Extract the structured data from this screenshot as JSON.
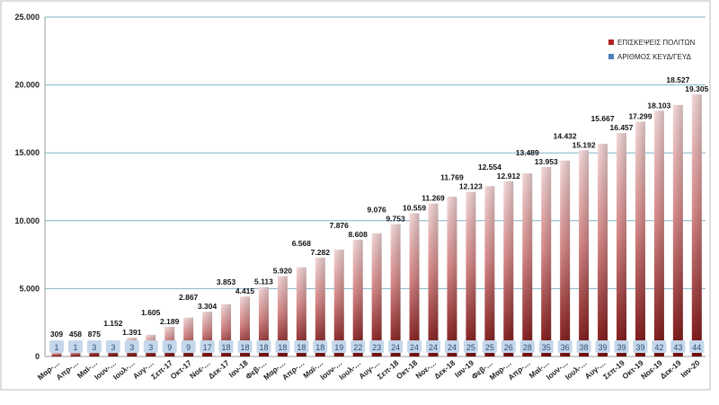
{
  "chart_data": {
    "type": "bar",
    "title": "",
    "xlabel": "",
    "ylabel": "",
    "ylim": [
      0,
      25000
    ],
    "yticks": [
      "0",
      "5.000",
      "10.000",
      "15.000",
      "20.000",
      "25.000"
    ],
    "grid": true,
    "legend_position": "top-right",
    "categories": [
      "Μαρ-…",
      "Απρ-…",
      "Μαϊ-…",
      "Ιουν-…",
      "Ιουλ-…",
      "Αυγ-…",
      "Σεπ-17",
      "Οκτ-17",
      "Νοε-…",
      "Δεκ-17",
      "Ιαν-18",
      "Φεβ-…",
      "Μαρ-…",
      "Απρ-…",
      "Μαϊ-…",
      "Ιουν-…",
      "Ιουλ-…",
      "Αυγ-…",
      "Σεπ-18",
      "Οκτ-18",
      "Νοε-…",
      "Δεκ-18",
      "Ιαν-19",
      "Φεβ-…",
      "Μαρ-…",
      "Απρ-…",
      "Μαϊ-…",
      "Ιουν-…",
      "Ιουλ-…",
      "Αυγ-…",
      "Σεπ-19",
      "Οκτ-19",
      "Νοε-19",
      "Δεκ-19",
      "Ιαν-20"
    ],
    "series": [
      {
        "name": "ΕΠΙΣΚΕΨΕΙΣ ΠΟΛΙΤΩΝ",
        "color": "#8b1a1a",
        "values": [
          309,
          458,
          875,
          1152,
          1391,
          1605,
          2189,
          2867,
          3304,
          3853,
          4415,
          5113,
          5920,
          6568,
          7282,
          7876,
          8608,
          9076,
          9753,
          10559,
          11269,
          11769,
          12123,
          12554,
          12912,
          13489,
          13953,
          14432,
          15192,
          15667,
          16457,
          17299,
          18103,
          18527,
          19305
        ],
        "labels": [
          "309",
          "458",
          "875",
          "1.152",
          "1.391",
          "1.605",
          "2.189",
          "2.867",
          "3.304",
          "3.853",
          "4.415",
          "5.113",
          "5.920",
          "6.568",
          "7.282",
          "7.876",
          "8.608",
          "9.076",
          "9.753",
          "10.559",
          "11.269",
          "11.769",
          "12.123",
          "12.554",
          "12.912",
          "13.489",
          "13.953",
          "14.432",
          "15.192",
          "15.667",
          "16.457",
          "17.299",
          "18.103",
          "18.527",
          "19.305"
        ]
      },
      {
        "name": "ΑΡΙΘΜΟΣ ΚΕΥΔ/ΓΕΥΔ",
        "color": "#4f81bd",
        "values": [
          1,
          1,
          3,
          3,
          3,
          3,
          9,
          9,
          17,
          18,
          18,
          18,
          18,
          18,
          18,
          19,
          22,
          23,
          24,
          24,
          24,
          24,
          25,
          25,
          26,
          28,
          35,
          36,
          38,
          39,
          39,
          39,
          42,
          43,
          44
        ]
      }
    ]
  }
}
